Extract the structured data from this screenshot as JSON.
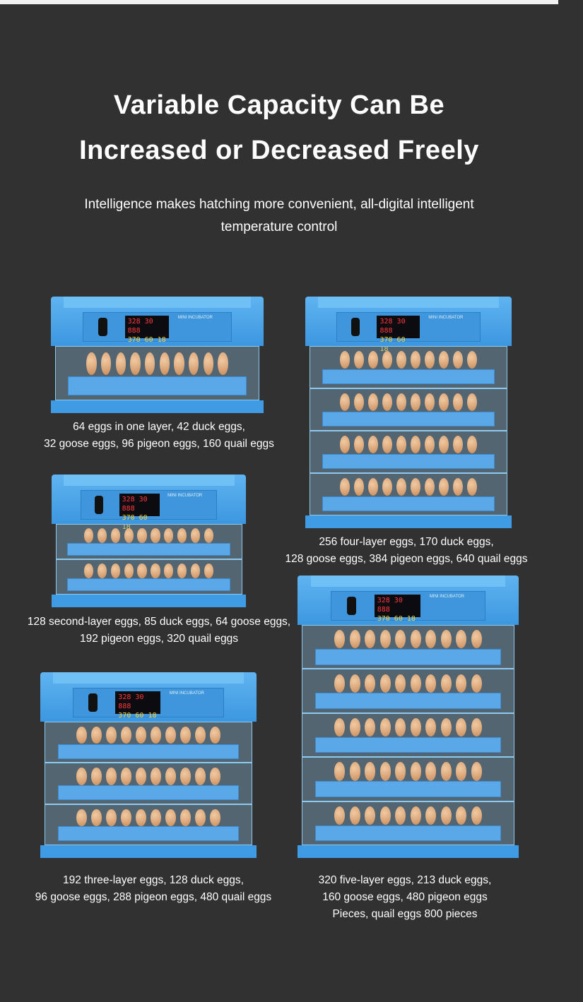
{
  "header": {
    "title_line1": "Variable Capacity Can Be",
    "title_line2": "Increased or Decreased Freely",
    "subtitle_line1": "Intelligence makes hatching more convenient, all-digital intelligent",
    "subtitle_line2": "temperature control"
  },
  "colors": {
    "background": "#313131",
    "incubator_blue": "#3e9be4",
    "egg": "#d9a57a"
  },
  "display": {
    "row1": "328 30 888",
    "row2": "370 60 18",
    "label": "MINI INCUBATOR"
  },
  "products": [
    {
      "layers": 1,
      "caption": [
        "64 eggs in one layer, 42 duck eggs,",
        "32 goose eggs, 96 pigeon eggs, 160 quail eggs"
      ]
    },
    {
      "layers": 2,
      "caption": [
        "128 second-layer eggs, 85 duck eggs, 64 goose eggs,",
        "192 pigeon eggs, 320 quail eggs"
      ]
    },
    {
      "layers": 3,
      "caption": [
        "192 three-layer eggs, 128 duck eggs,",
        "96 goose eggs, 288 pigeon eggs, 480 quail eggs"
      ]
    },
    {
      "layers": 4,
      "caption": [
        "256 four-layer eggs, 170 duck eggs,",
        "128 goose eggs, 384 pigeon eggs, 640 quail eggs"
      ]
    },
    {
      "layers": 5,
      "caption": [
        "320 five-layer eggs, 213 duck eggs,",
        "160 goose eggs, 480 pigeon eggs",
        "Pieces, quail eggs 800 pieces"
      ]
    }
  ]
}
